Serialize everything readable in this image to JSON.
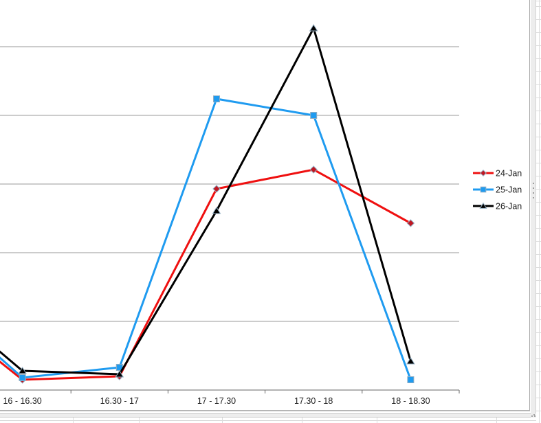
{
  "chart_data": {
    "type": "line",
    "title": "",
    "categories": [
      "16 - 16.30",
      "16.30 - 17",
      "17 - 17.30",
      "17.30 - 18",
      "18 - 18.30"
    ],
    "series": [
      {
        "name": "24-Jan",
        "color": "#ef1010",
        "marker": "diamond",
        "marker_fill": "#c01722",
        "values": [
          0.15,
          0.2,
          2.93,
          3.21,
          2.43
        ],
        "offscreen_prev_value": 1.28
      },
      {
        "name": "25-Jan",
        "color": "#1f9bf0",
        "marker": "square",
        "marker_fill": "#1f9bf0",
        "values": [
          0.18,
          0.33,
          4.24,
          4.0,
          0.15
        ],
        "offscreen_prev_value": 1.43
      },
      {
        "name": "26-Jan",
        "color": "#000000",
        "marker": "triangle",
        "marker_fill": "#000000",
        "values": [
          0.28,
          0.23,
          2.61,
          5.27,
          0.42
        ],
        "offscreen_prev_value": 1.48
      }
    ],
    "xlabel": "",
    "ylabel": "",
    "y_axis_labels_visible": false,
    "value_units": "gridline units; y-axis scale is cropped out of view, one unit equals one horizontal gridline",
    "ylim": [
      0,
      5.7
    ],
    "gridlines": {
      "horizontal": true,
      "values": [
        1,
        2,
        3,
        4,
        5
      ],
      "color": "#999999"
    },
    "legend": {
      "position": "right",
      "entries": [
        "24-Jan",
        "25-Jan",
        "26-Jan"
      ]
    },
    "axis_color": "#666666",
    "marker_outline_color": "#93aec2",
    "text_color": "#1a1a1a"
  },
  "surroundings": {
    "vertical_scrollbar_grip_icon": "dotted-grip",
    "resize_corner_icon": "diagonal-grip-dots",
    "worksheet_grid_color": "#dcdcdc",
    "scrollbar_track_color": "#ededed"
  }
}
